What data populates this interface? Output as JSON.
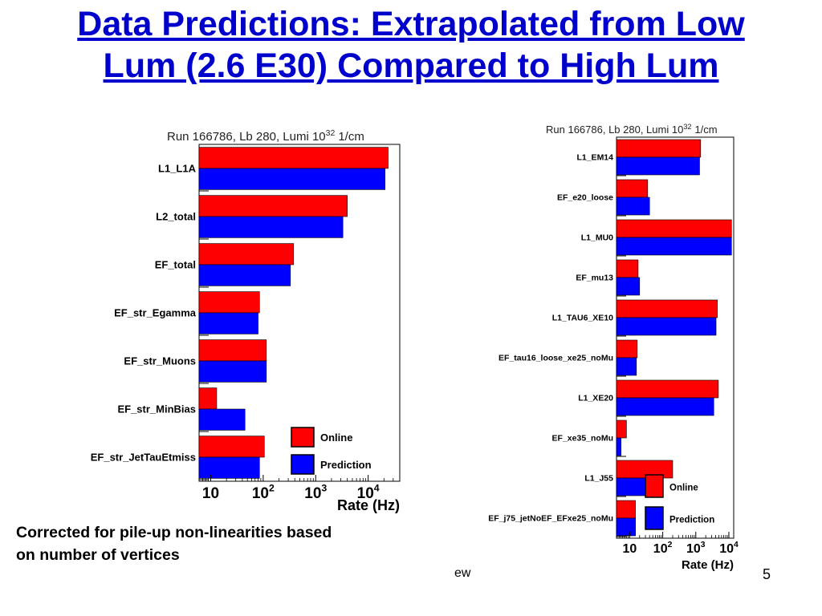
{
  "slide": {
    "title_line1": "Data Predictions: Extrapolated from Low",
    "title_line2": "Lum (2.6 E30) Compared to High Lum",
    "caption_line1": "Corrected for pile-up non-linearities based",
    "caption_line2": "on number of vertices",
    "footer_center": "ew",
    "page_number": "5"
  },
  "colors": {
    "online": "#ff0000",
    "prediction": "#0000ff",
    "title": "#0000cc"
  },
  "chart_data": [
    {
      "type": "bar",
      "orientation": "horizontal",
      "title": "Run 166786, Lb 280, Lumi 10",
      "title_superscript": "32",
      "title_suffix": "1/cm",
      "xlabel": "Rate (Hz)",
      "xscale": "log",
      "xlim": [
        6,
        40000
      ],
      "xticks": [
        "10",
        "10",
        "10",
        "10"
      ],
      "xtick_exponents": [
        "",
        "2",
        "3",
        "4"
      ],
      "categories": [
        "L1_L1A",
        "L2_total",
        "EF_total",
        "EF_str_Egamma",
        "EF_str_Muons",
        "EF_str_MinBias",
        "EF_str_JetTauEtmiss"
      ],
      "series": [
        {
          "name": "Online",
          "values": [
            24000,
            4000,
            380,
            85,
            115,
            13,
            105
          ]
        },
        {
          "name": "Prediction",
          "values": [
            21000,
            3300,
            330,
            80,
            115,
            45,
            85
          ]
        }
      ],
      "legend_position": "bottom-right"
    },
    {
      "type": "bar",
      "orientation": "horizontal",
      "title": "Run 166786, Lb 280, Lumi 10",
      "title_superscript": "32",
      "title_suffix": "1/cm",
      "xlabel": "Rate (Hz)",
      "xscale": "log",
      "xlim": [
        4,
        14000
      ],
      "xticks": [
        "10",
        "10",
        "10",
        "10"
      ],
      "xtick_exponents": [
        "",
        "2",
        "3",
        "4"
      ],
      "categories": [
        "L1_EM14",
        "EF_e20_loose",
        "L1_MU0",
        "EF_mu13",
        "L1_TAU6_XE10",
        "EF_tau16_loose_xe25_noMu",
        "L1_XE20",
        "EF_xe35_noMu",
        "L1_J55",
        "EF_j75_jetNoEF_EFxe25_noMu"
      ],
      "series": [
        {
          "name": "Online",
          "values": [
            1400,
            35,
            12000,
            18,
            4500,
            17,
            4800,
            8,
            200,
            15
          ]
        },
        {
          "name": "Prediction",
          "values": [
            1300,
            40,
            12000,
            20,
            4100,
            16,
            3500,
            5.5,
            60,
            15
          ]
        }
      ],
      "legend_position": "bottom-right"
    }
  ]
}
